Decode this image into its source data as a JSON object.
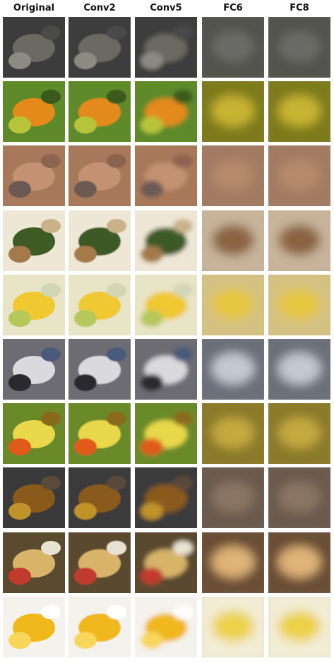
{
  "columns": [
    "Original",
    "Conv2",
    "Conv5",
    "FC6",
    "FC8"
  ],
  "rows": [
    {
      "subject": "dark-water",
      "colors": [
        "#3c3c3c",
        "#6a6a62",
        "#8b8b82",
        "#4a4a48"
      ]
    },
    {
      "subject": "orange-butterfly-leaves",
      "colors": [
        "#5e8a2a",
        "#e58a1a",
        "#b7c43a",
        "#3a5a1c"
      ]
    },
    {
      "subject": "hand-with-chain",
      "colors": [
        "#a8785a",
        "#c49272",
        "#6a5a52",
        "#8c6450"
      ]
    },
    {
      "subject": "food-plate",
      "colors": [
        "#efe7d5",
        "#3e5a25",
        "#a47a4a",
        "#c9b28a"
      ]
    },
    {
      "subject": "lemons-and-limes",
      "colors": [
        "#e8e4c6",
        "#f0c830",
        "#b6c85a",
        "#d2d6b6"
      ]
    },
    {
      "subject": "bullet-train",
      "colors": [
        "#6c6c72",
        "#dadade",
        "#2a2a2e",
        "#4a5a7a"
      ]
    },
    {
      "subject": "yellow-butterfly-flowers",
      "colors": [
        "#6a8a2a",
        "#e8d84a",
        "#e05a1a",
        "#8a6a1a"
      ]
    },
    {
      "subject": "rusty-chain",
      "colors": [
        "#3a3a3a",
        "#8a5a1a",
        "#c0922a",
        "#5a4a3a"
      ]
    },
    {
      "subject": "fruit-table",
      "colors": [
        "#5a4a2e",
        "#d8b46a",
        "#c03a2e",
        "#e8e2d2"
      ]
    },
    {
      "subject": "orange-slice",
      "colors": [
        "#f4f2ec",
        "#f0b81a",
        "#f8d65a",
        "#ffffff"
      ]
    }
  ],
  "blur": [
    0,
    0.8,
    3.2,
    7,
    7
  ],
  "fcTints": [
    [
      "#52524e",
      "#6a6a66"
    ],
    [
      "#7e7a1a",
      "#c8b432"
    ],
    [
      "#a27a62",
      "#b48a6a"
    ],
    [
      "#c8b49a",
      "#8a6442"
    ],
    [
      "#d4c282",
      "#e6c640"
    ],
    [
      "#6a707a",
      "#c4c8d0"
    ],
    [
      "#8a7a2a",
      "#c4a840"
    ],
    [
      "#6a5a4e",
      "#8a7462"
    ],
    [
      "#6a4e36",
      "#e0b478"
    ],
    [
      "#f2ecd4",
      "#ecd24a"
    ]
  ]
}
